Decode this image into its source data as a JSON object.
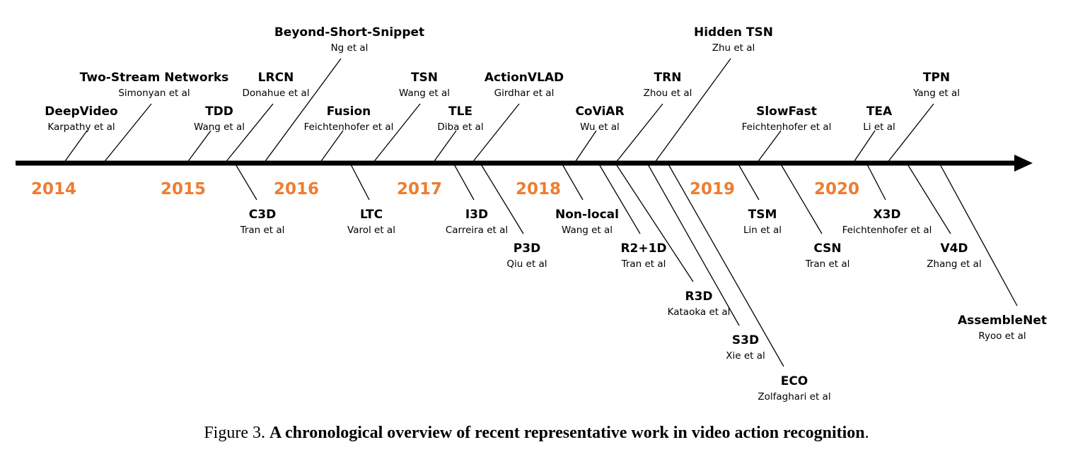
{
  "years": [
    "2014",
    "2015",
    "2016",
    "2017",
    "2018",
    "2019",
    "2020"
  ],
  "colors": {
    "year": "#ED7D31",
    "axis": "#000000"
  },
  "methods": [
    {
      "name": "DeepVideo",
      "authors": "Karpathy et al"
    },
    {
      "name": "Two-Stream Networks",
      "authors": "Simonyan et al"
    },
    {
      "name": "TDD",
      "authors": "Wang et al"
    },
    {
      "name": "LRCN",
      "authors": "Donahue et al"
    },
    {
      "name": "Beyond-Short-Snippet",
      "authors": "Ng et al"
    },
    {
      "name": "Fusion",
      "authors": "Feichtenhofer et al"
    },
    {
      "name": "TSN",
      "authors": "Wang et al"
    },
    {
      "name": "TLE",
      "authors": "Diba et al"
    },
    {
      "name": "ActionVLAD",
      "authors": "Girdhar et al"
    },
    {
      "name": "CoViAR",
      "authors": "Wu et al"
    },
    {
      "name": "TRN",
      "authors": "Zhou et al"
    },
    {
      "name": "Hidden TSN",
      "authors": "Zhu et al"
    },
    {
      "name": "SlowFast",
      "authors": "Feichtenhofer et al"
    },
    {
      "name": "TEA",
      "authors": "Li et al"
    },
    {
      "name": "TPN",
      "authors": "Yang et al"
    },
    {
      "name": "C3D",
      "authors": "Tran et al"
    },
    {
      "name": "LTC",
      "authors": "Varol et al"
    },
    {
      "name": "I3D",
      "authors": "Carreira et al"
    },
    {
      "name": "P3D",
      "authors": "Qiu et al"
    },
    {
      "name": "Non-local",
      "authors": "Wang et al"
    },
    {
      "name": "R2+1D",
      "authors": "Tran et al"
    },
    {
      "name": "R3D",
      "authors": "Kataoka et al"
    },
    {
      "name": "S3D",
      "authors": "Xie et al"
    },
    {
      "name": "ECO",
      "authors": "Zolfaghari et al"
    },
    {
      "name": "TSM",
      "authors": "Lin et al"
    },
    {
      "name": "CSN",
      "authors": "Tran et al"
    },
    {
      "name": "X3D",
      "authors": "Feichtenhofer et al"
    },
    {
      "name": "V4D",
      "authors": "Zhang et al"
    },
    {
      "name": "AssembleNet",
      "authors": "Ryoo et al"
    }
  ],
  "caption": {
    "prefix": "Figure 3.",
    "title": "A chronological overview of recent representative work in video action recognition",
    "suffix": "."
  }
}
